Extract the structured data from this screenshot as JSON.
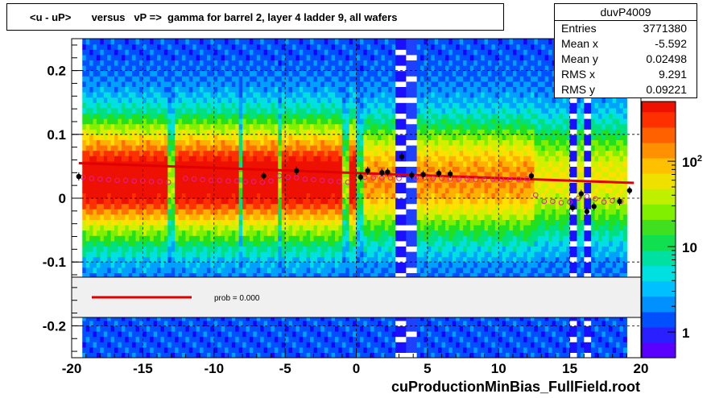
{
  "title": "<u - uP>       versus   vP =>  gamma for barrel 2, layer 4 ladder 9, all wafers",
  "stats": {
    "name": "duvP4009",
    "rows": [
      {
        "label": "Entries",
        "value": "3771380"
      },
      {
        "label": "Mean x",
        "value": "-5.592"
      },
      {
        "label": "Mean y",
        "value": "0.02498"
      },
      {
        "label": "RMS x",
        "value": "9.291"
      },
      {
        "label": "RMS y",
        "value": "0.09221"
      }
    ]
  },
  "footer": "cuProductionMinBias_FullField.root",
  "legend": {
    "label": "prob = 0.000"
  },
  "colors": {
    "fit_line": "#e00000",
    "profile_open": "#e0209a",
    "profile_solid": "#000000",
    "legend_bg": "#f0f0f0"
  },
  "chart_data": {
    "type": "heatmap",
    "xlim": [
      -20,
      20
    ],
    "ylim": [
      -0.25,
      0.25
    ],
    "x_ticks": [
      "-20",
      "-15",
      "-10",
      "-5",
      "0",
      "5",
      "10",
      "15",
      "20"
    ],
    "y_ticks": [
      "-0.2",
      "-0.1",
      "0",
      "0.1",
      "0.2"
    ],
    "colorbar": {
      "scale": "log",
      "ticks": [
        "1",
        "10",
        "10^2"
      ],
      "range": [
        0.5,
        500
      ]
    },
    "grid": true,
    "fit_line": {
      "x": [
        -19.5,
        19.5
      ],
      "y": [
        0.055,
        0.024
      ]
    },
    "profile_open": {
      "x": [
        -19.2,
        -18.6,
        -18.0,
        -17.4,
        -16.8,
        -16.2,
        -15.6,
        -15.0,
        -14.4,
        -13.8,
        -13.2,
        -12.0,
        -11.4,
        -10.8,
        -10.2,
        -9.6,
        -9.0,
        -8.4,
        -7.8,
        -7.2,
        -6.6,
        -6.0,
        -5.4,
        -4.8,
        -4.2,
        -3.6,
        -3.0,
        -2.4,
        -1.8,
        -1.2,
        -0.6,
        0.6,
        1.2,
        1.8,
        2.4,
        3.0,
        4.2,
        4.8,
        5.4,
        6.0,
        6.6,
        7.2,
        7.8,
        8.4,
        9.0,
        9.6,
        10.2,
        10.8,
        11.4,
        12.0,
        12.6,
        13.2,
        13.8,
        14.4,
        15.0,
        15.6,
        16.2,
        16.8,
        17.4,
        18.0,
        18.6
      ],
      "y": [
        0.033,
        0.031,
        0.03,
        0.029,
        0.028,
        0.028,
        0.027,
        0.027,
        0.026,
        0.026,
        0.025,
        0.031,
        0.03,
        0.029,
        0.028,
        0.028,
        0.027,
        0.027,
        0.026,
        0.026,
        0.025,
        0.027,
        0.035,
        0.033,
        0.032,
        0.03,
        0.029,
        0.028,
        0.027,
        0.026,
        0.025,
        0.033,
        0.032,
        0.032,
        0.032,
        0.031,
        0.032,
        0.032,
        0.031,
        0.031,
        0.03,
        0.03,
        0.03,
        0.029,
        0.029,
        0.03,
        0.03,
        0.029,
        0.03,
        0.03,
        0.005,
        -0.005,
        -0.005,
        -0.007,
        -0.006,
        0.0,
        0.003,
        -0.001,
        -0.006,
        -0.004,
        -0.005
      ]
    },
    "profile_solid": {
      "x": [
        -19.5,
        -6.5,
        -4.2,
        0.3,
        0.8,
        1.8,
        2.2,
        3.2,
        3.9,
        4.7,
        5.8,
        6.6,
        12.3,
        15.2,
        15.8,
        16.2,
        16.7,
        18.5,
        19.2
      ],
      "y": [
        0.034,
        0.035,
        0.043,
        0.033,
        0.043,
        0.04,
        0.041,
        0.065,
        0.036,
        0.037,
        0.039,
        0.038,
        0.035,
        -0.015,
        0.007,
        -0.021,
        -0.013,
        -0.005,
        0.012
      ]
    }
  }
}
